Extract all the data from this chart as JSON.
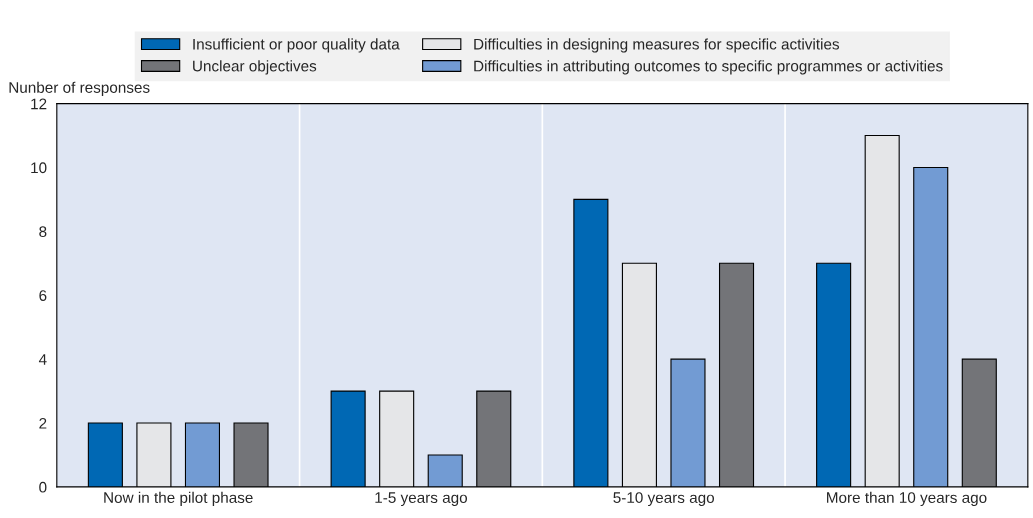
{
  "chart_data": {
    "type": "bar",
    "ylabel": "Nunber of responses",
    "categories": [
      "Now in the pilot phase",
      "1-5 years ago",
      "5-10 years ago",
      "More than 10 years ago"
    ],
    "series": [
      {
        "name": "Insufficient or poor quality data",
        "color": "#0068b4",
        "values": [
          2,
          3,
          9,
          7
        ]
      },
      {
        "name": "Difficulties in designing measures for specific activities",
        "color": "#e5e6e8",
        "values": [
          2,
          3,
          7,
          11
        ]
      },
      {
        "name": "Difficulties in attributing outcomes to specific programmes or activities",
        "color": "#729bd3",
        "values": [
          2,
          1,
          4,
          10
        ]
      },
      {
        "name": "Unclear objectives",
        "color": "#737478",
        "values": [
          2,
          3,
          7,
          4
        ]
      }
    ],
    "ylim": [
      0,
      12
    ],
    "yticks": [
      0,
      2,
      4,
      6,
      8,
      10,
      12
    ],
    "grid": "x",
    "legend": "top"
  }
}
